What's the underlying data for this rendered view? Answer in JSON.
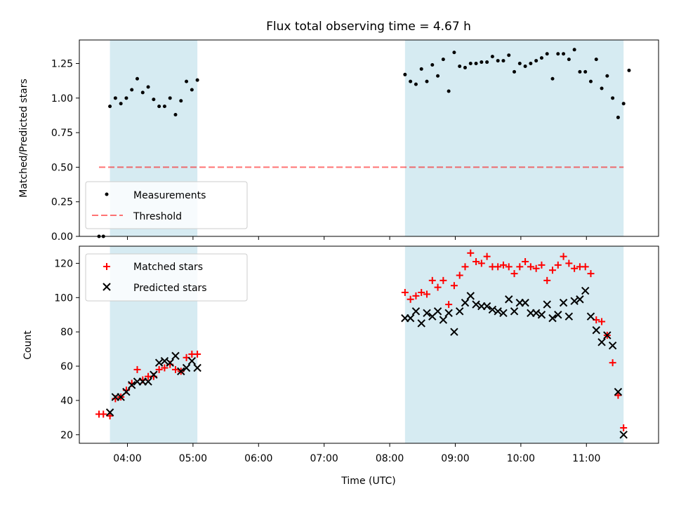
{
  "title": "Flux total observing time = 4.67 h",
  "colors": {
    "band": "#add8e6",
    "measurement": "#000000",
    "threshold": "#ff0000",
    "matched": "#ff0000",
    "predicted": "#000000"
  },
  "chart_data": [
    {
      "type": "scatter",
      "panel": "top",
      "ylabel": "Matched/Predicted stars",
      "ylim": [
        0,
        1.42
      ],
      "xlim": [
        "03:16",
        "12:06"
      ],
      "y_ticks": [
        "0.00",
        "0.25",
        "0.50",
        "0.75",
        "1.00",
        "1.25"
      ],
      "shaded_intervals": [
        [
          "03:44",
          "05:04"
        ],
        [
          "08:14",
          "11:34"
        ]
      ],
      "legend": {
        "placement": "lower-left",
        "entries": [
          "Measurements",
          "Threshold"
        ]
      },
      "series": [
        {
          "name": "Measurements",
          "points": [
            [
              "03:34",
              0.0
            ],
            [
              "03:38",
              0.0
            ],
            [
              "03:44",
              0.94
            ],
            [
              "03:49",
              1.0
            ],
            [
              "03:54",
              0.96
            ],
            [
              "03:59",
              1.0
            ],
            [
              "04:04",
              1.06
            ],
            [
              "04:09",
              1.14
            ],
            [
              "04:14",
              1.04
            ],
            [
              "04:19",
              1.08
            ],
            [
              "04:24",
              0.99
            ],
            [
              "04:29",
              0.94
            ],
            [
              "04:34",
              0.94
            ],
            [
              "04:39",
              1.0
            ],
            [
              "04:44",
              0.88
            ],
            [
              "04:49",
              0.98
            ],
            [
              "04:54",
              1.12
            ],
            [
              "04:59",
              1.06
            ],
            [
              "05:04",
              1.13
            ],
            [
              "08:14",
              1.17
            ],
            [
              "08:19",
              1.12
            ],
            [
              "08:24",
              1.1
            ],
            [
              "08:29",
              1.21
            ],
            [
              "08:34",
              1.12
            ],
            [
              "08:39",
              1.24
            ],
            [
              "08:44",
              1.16
            ],
            [
              "08:49",
              1.28
            ],
            [
              "08:54",
              1.05
            ],
            [
              "08:59",
              1.33
            ],
            [
              "09:04",
              1.23
            ],
            [
              "09:09",
              1.22
            ],
            [
              "09:14",
              1.25
            ],
            [
              "09:19",
              1.25
            ],
            [
              "09:24",
              1.26
            ],
            [
              "09:29",
              1.26
            ],
            [
              "09:34",
              1.3
            ],
            [
              "09:39",
              1.27
            ],
            [
              "09:44",
              1.27
            ],
            [
              "09:49",
              1.31
            ],
            [
              "09:54",
              1.19
            ],
            [
              "09:59",
              1.25
            ],
            [
              "10:04",
              1.23
            ],
            [
              "10:09",
              1.25
            ],
            [
              "10:14",
              1.27
            ],
            [
              "10:19",
              1.29
            ],
            [
              "10:24",
              1.32
            ],
            [
              "10:29",
              1.14
            ],
            [
              "10:34",
              1.32
            ],
            [
              "10:39",
              1.32
            ],
            [
              "10:44",
              1.28
            ],
            [
              "10:49",
              1.35
            ],
            [
              "10:54",
              1.19
            ],
            [
              "10:59",
              1.19
            ],
            [
              "11:04",
              1.12
            ],
            [
              "11:09",
              1.28
            ],
            [
              "11:14",
              1.07
            ],
            [
              "11:19",
              1.16
            ],
            [
              "11:24",
              1.0
            ],
            [
              "11:29",
              0.86
            ],
            [
              "11:34",
              0.96
            ],
            [
              "11:39",
              1.2
            ]
          ]
        }
      ],
      "threshold": {
        "name": "Threshold",
        "y": 0.5,
        "x_range": [
          "03:34",
          "11:34"
        ]
      }
    },
    {
      "type": "scatter",
      "panel": "bottom",
      "xlabel": "Time (UTC)",
      "ylabel": "Count",
      "ylim": [
        15,
        130
      ],
      "xlim": [
        "03:16",
        "12:06"
      ],
      "x_ticks": [
        "04:00",
        "05:00",
        "06:00",
        "07:00",
        "08:00",
        "09:00",
        "10:00",
        "11:00"
      ],
      "y_ticks": [
        "20",
        "40",
        "60",
        "80",
        "100",
        "120"
      ],
      "shaded_intervals": [
        [
          "03:44",
          "05:04"
        ],
        [
          "08:14",
          "11:34"
        ]
      ],
      "legend": {
        "placement": "top-left",
        "entries": [
          "Matched stars",
          "Predicted stars"
        ]
      },
      "series": [
        {
          "name": "Matched stars",
          "marker": "+",
          "points": [
            [
              "03:34",
              32
            ],
            [
              "03:38",
              32
            ],
            [
              "03:44",
              31
            ],
            [
              "03:49",
              41
            ],
            [
              "03:54",
              42
            ],
            [
              "03:59",
              46
            ],
            [
              "04:04",
              50
            ],
            [
              "04:09",
              58
            ],
            [
              "04:14",
              52
            ],
            [
              "04:19",
              54
            ],
            [
              "04:24",
              54
            ],
            [
              "04:29",
              58
            ],
            [
              "04:34",
              59
            ],
            [
              "04:39",
              61
            ],
            [
              "04:44",
              58
            ],
            [
              "04:49",
              57
            ],
            [
              "04:54",
              65
            ],
            [
              "04:59",
              67
            ],
            [
              "05:04",
              67
            ],
            [
              "08:14",
              103
            ],
            [
              "08:19",
              99
            ],
            [
              "08:24",
              101
            ],
            [
              "08:29",
              103
            ],
            [
              "08:34",
              102
            ],
            [
              "08:39",
              110
            ],
            [
              "08:44",
              106
            ],
            [
              "08:49",
              110
            ],
            [
              "08:54",
              96
            ],
            [
              "08:59",
              107
            ],
            [
              "09:04",
              113
            ],
            [
              "09:09",
              118
            ],
            [
              "09:14",
              126
            ],
            [
              "09:19",
              121
            ],
            [
              "09:24",
              120
            ],
            [
              "09:29",
              124
            ],
            [
              "09:34",
              118
            ],
            [
              "09:39",
              118
            ],
            [
              "09:44",
              119
            ],
            [
              "09:49",
              118
            ],
            [
              "09:54",
              114
            ],
            [
              "09:59",
              118
            ],
            [
              "10:04",
              121
            ],
            [
              "10:09",
              118
            ],
            [
              "10:14",
              117
            ],
            [
              "10:19",
              119
            ],
            [
              "10:24",
              110
            ],
            [
              "10:29",
              116
            ],
            [
              "10:34",
              119
            ],
            [
              "10:39",
              124
            ],
            [
              "10:44",
              120
            ],
            [
              "10:49",
              117
            ],
            [
              "10:54",
              118
            ],
            [
              "10:59",
              118
            ],
            [
              "11:04",
              114
            ],
            [
              "11:09",
              87
            ],
            [
              "11:14",
              86
            ],
            [
              "11:19",
              78
            ],
            [
              "11:24",
              62
            ],
            [
              "11:29",
              43
            ],
            [
              "11:34",
              24
            ]
          ]
        },
        {
          "name": "Predicted stars",
          "marker": "x",
          "points": [
            [
              "03:44",
              33
            ],
            [
              "03:49",
              42
            ],
            [
              "03:54",
              42
            ],
            [
              "03:59",
              45
            ],
            [
              "04:04",
              49
            ],
            [
              "04:09",
              51
            ],
            [
              "04:14",
              51
            ],
            [
              "04:19",
              51
            ],
            [
              "04:24",
              55
            ],
            [
              "04:29",
              62
            ],
            [
              "04:34",
              63
            ],
            [
              "04:39",
              62
            ],
            [
              "04:44",
              66
            ],
            [
              "04:49",
              57
            ],
            [
              "04:54",
              59
            ],
            [
              "04:59",
              63
            ],
            [
              "05:04",
              59
            ],
            [
              "08:14",
              88
            ],
            [
              "08:19",
              88
            ],
            [
              "08:24",
              92
            ],
            [
              "08:29",
              85
            ],
            [
              "08:34",
              91
            ],
            [
              "08:39",
              89
            ],
            [
              "08:44",
              92
            ],
            [
              "08:49",
              87
            ],
            [
              "08:54",
              91
            ],
            [
              "08:59",
              80
            ],
            [
              "09:04",
              92
            ],
            [
              "09:09",
              97
            ],
            [
              "09:14",
              101
            ],
            [
              "09:19",
              96
            ],
            [
              "09:24",
              95
            ],
            [
              "09:29",
              95
            ],
            [
              "09:34",
              93
            ],
            [
              "09:39",
              92
            ],
            [
              "09:44",
              91
            ],
            [
              "09:49",
              99
            ],
            [
              "09:54",
              92
            ],
            [
              "09:59",
              97
            ],
            [
              "10:04",
              97
            ],
            [
              "10:09",
              91
            ],
            [
              "10:14",
              91
            ],
            [
              "10:19",
              90
            ],
            [
              "10:24",
              96
            ],
            [
              "10:29",
              88
            ],
            [
              "10:34",
              90
            ],
            [
              "10:39",
              97
            ],
            [
              "10:44",
              89
            ],
            [
              "10:49",
              98
            ],
            [
              "10:54",
              99
            ],
            [
              "10:59",
              104
            ],
            [
              "11:04",
              89
            ],
            [
              "11:09",
              81
            ],
            [
              "11:14",
              74
            ],
            [
              "11:19",
              78
            ],
            [
              "11:24",
              72
            ],
            [
              "11:29",
              45
            ],
            [
              "11:34",
              20
            ]
          ]
        }
      ]
    }
  ]
}
